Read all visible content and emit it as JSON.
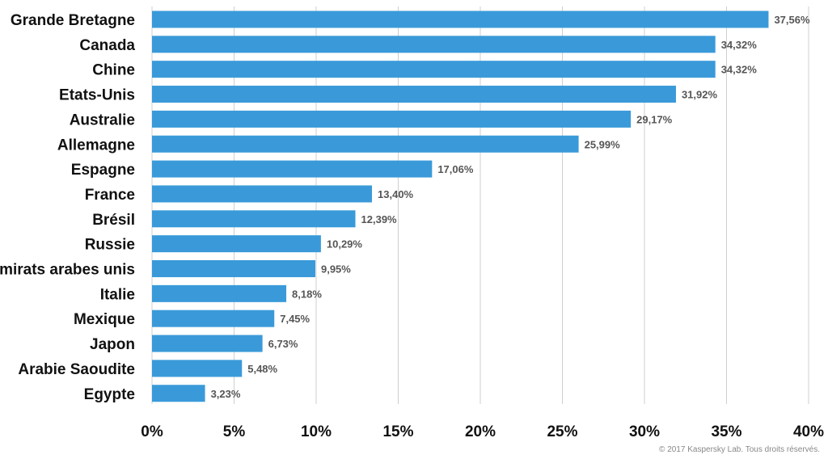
{
  "chart_data": {
    "type": "bar",
    "orientation": "horizontal",
    "categories": [
      "Grande Bretagne",
      "Canada",
      "Chine",
      "Etats-Unis",
      "Australie",
      "Allemagne",
      "Espagne",
      "France",
      "Brésil",
      "Russie",
      "Émirats arabes unis",
      "Italie",
      "Mexique",
      "Japon",
      "Arabie Saoudite",
      "Egypte"
    ],
    "values": [
      37.56,
      34.32,
      34.32,
      31.92,
      29.17,
      25.99,
      17.06,
      13.4,
      12.39,
      10.29,
      9.95,
      8.18,
      7.45,
      6.73,
      5.48,
      3.23
    ],
    "value_labels": [
      "37,56%",
      "34,32%",
      "34,32%",
      "31,92%",
      "29,17%",
      "25,99%",
      "17,06%",
      "13,40%",
      "12,39%",
      "10,29%",
      "9,95%",
      "8,18%",
      "7,45%",
      "6,73%",
      "5,48%",
      "3,23%"
    ],
    "xlim": [
      0,
      40
    ],
    "x_ticks": [
      0,
      5,
      10,
      15,
      20,
      25,
      30,
      35,
      40
    ],
    "x_tick_labels": [
      "0%",
      "5%",
      "10%",
      "15%",
      "20%",
      "25%",
      "30%",
      "35%",
      "40%"
    ],
    "grid": "vertical",
    "title": "",
    "xlabel": "",
    "ylabel": "",
    "bar_color": "#3a9ad9",
    "grid_color": "#cfcfcf"
  },
  "copyright": "© 2017 Kaspersky Lab. Tous droits réservés."
}
